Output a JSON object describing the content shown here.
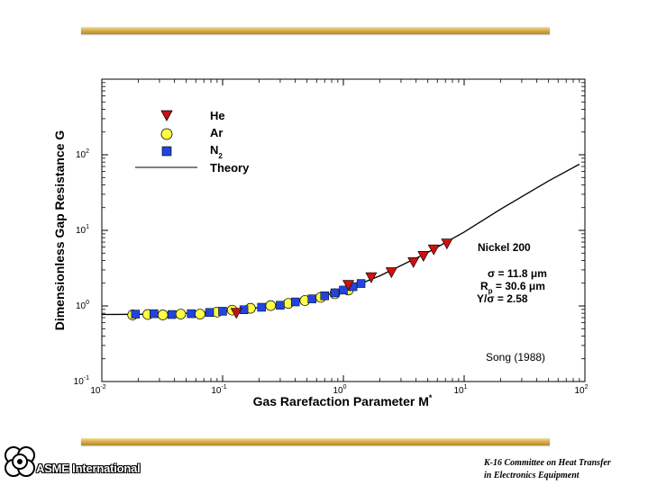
{
  "chart_data": {
    "type": "scatter",
    "xlabel": "Gas Rarefaction Parameter  M",
    "xlabel_sup": "*",
    "ylabel": "Dimensionless Gap Resistance  G",
    "x_scale": "log",
    "y_scale": "log",
    "xlim": [
      0.01,
      100
    ],
    "ylim": [
      0.1,
      1000
    ],
    "x_ticks": [
      {
        "value": 0.01,
        "base": "10",
        "exp": "-2"
      },
      {
        "value": 0.1,
        "base": "10",
        "exp": "-1"
      },
      {
        "value": 1,
        "base": "10",
        "exp": "0"
      },
      {
        "value": 10,
        "base": "10",
        "exp": "1"
      },
      {
        "value": 100,
        "base": "10",
        "exp": "2"
      }
    ],
    "y_ticks": [
      {
        "value": 0.1,
        "base": "10",
        "exp": "-1"
      },
      {
        "value": 1,
        "base": "10",
        "exp": "0"
      },
      {
        "value": 10,
        "base": "10",
        "exp": "1"
      },
      {
        "value": 100,
        "base": "10",
        "exp": "2"
      }
    ],
    "legend_position": "top-left",
    "series": [
      {
        "name": "He",
        "marker": "triangle-down",
        "color": "#cc1111",
        "points": [
          [
            0.13,
            0.81
          ],
          [
            1.1,
            1.9
          ],
          [
            1.7,
            2.4
          ],
          [
            2.5,
            2.8
          ],
          [
            3.8,
            3.8
          ],
          [
            4.6,
            4.6
          ],
          [
            5.6,
            5.6
          ],
          [
            7.2,
            6.7
          ]
        ]
      },
      {
        "name": "Ar",
        "marker": "circle",
        "color": "#ffff44",
        "points": [
          [
            0.018,
            0.76
          ],
          [
            0.024,
            0.77
          ],
          [
            0.032,
            0.76
          ],
          [
            0.045,
            0.78
          ],
          [
            0.065,
            0.78
          ],
          [
            0.09,
            0.83
          ],
          [
            0.12,
            0.88
          ],
          [
            0.17,
            0.93
          ],
          [
            0.25,
            1.01
          ],
          [
            0.35,
            1.08
          ],
          [
            0.48,
            1.18
          ],
          [
            0.65,
            1.3
          ],
          [
            0.85,
            1.45
          ],
          [
            1.1,
            1.62
          ]
        ]
      },
      {
        "name": "N",
        "name_sub": "2",
        "marker": "square",
        "color": "#2244dd",
        "points": [
          [
            0.019,
            0.78
          ],
          [
            0.027,
            0.79
          ],
          [
            0.038,
            0.77
          ],
          [
            0.055,
            0.79
          ],
          [
            0.078,
            0.82
          ],
          [
            0.1,
            0.85
          ],
          [
            0.15,
            0.89
          ],
          [
            0.21,
            0.96
          ],
          [
            0.3,
            1.02
          ],
          [
            0.4,
            1.13
          ],
          [
            0.55,
            1.24
          ],
          [
            0.7,
            1.36
          ],
          [
            0.85,
            1.49
          ],
          [
            1.0,
            1.62
          ],
          [
            1.2,
            1.8
          ],
          [
            1.4,
            1.98
          ]
        ]
      },
      {
        "name": "Theory",
        "marker": "line",
        "color": "#000000",
        "points": [
          [
            0.01,
            0.77
          ],
          [
            0.02,
            0.775
          ],
          [
            0.05,
            0.8
          ],
          [
            0.1,
            0.85
          ],
          [
            0.2,
            0.95
          ],
          [
            0.5,
            1.2
          ],
          [
            1,
            1.6
          ],
          [
            2,
            2.5
          ],
          [
            5,
            5.1
          ],
          [
            10,
            9.5
          ],
          [
            20,
            19
          ],
          [
            50,
            45
          ],
          [
            90,
            75
          ]
        ]
      }
    ],
    "annotations": {
      "material": "Nickel 200",
      "sigma": "σ = 11.8 μm",
      "rp_main": "R",
      "rp_sub": "p",
      "rp_rest": " = 30.6 μm",
      "y_sigma": "Y/σ = 2.58",
      "credit": "Song  (1988)"
    }
  },
  "footer": {
    "org": "ASME International",
    "committee_line1": "K-16 Committee on Heat Transfer",
    "committee_line2": "in Electronics Equipment"
  }
}
